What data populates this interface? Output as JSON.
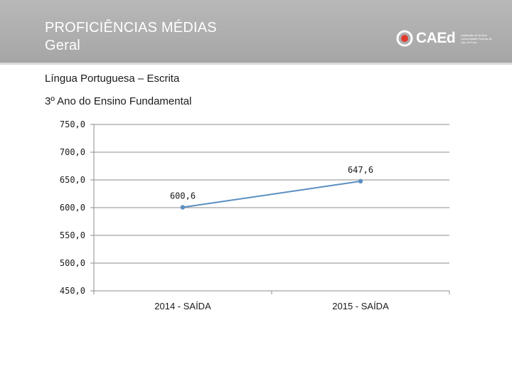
{
  "header": {
    "title_line1": "PROFICIÊNCIAS MÉDIAS",
    "title_line2": "Geral"
  },
  "logo": {
    "name": "CAEd",
    "subtitle": "Instituição de Ensino Universidade Federal de Juiz de Fora"
  },
  "subtitles": {
    "line1": "Língua Portuguesa – Escrita",
    "line2": "3º Ano do Ensino Fundamental"
  },
  "chart_data": {
    "type": "line",
    "categories": [
      "2014 - SAÍDA",
      "2015 - SAÍDA"
    ],
    "series": [
      {
        "values": [
          600.6,
          647.6
        ],
        "labels": [
          "600,6",
          "647,6"
        ],
        "color": "#5b8fc0"
      }
    ],
    "yticks": [
      "750,0",
      "700,0",
      "650,0",
      "600,0",
      "550,0",
      "500,0",
      "450,0"
    ],
    "ylim": [
      450,
      750
    ],
    "ystep": 50,
    "grid": true,
    "title": "",
    "xlabel": "",
    "ylabel": ""
  }
}
